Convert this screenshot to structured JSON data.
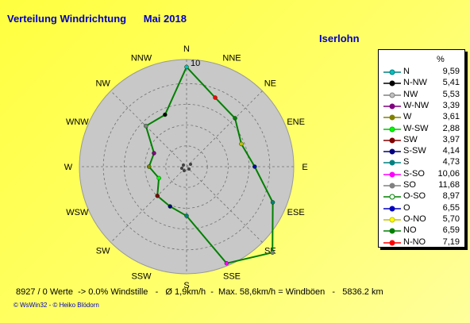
{
  "header": {
    "title": "Verteilung Windrichtung",
    "month": "Mai 2018",
    "location": "Iserlohn"
  },
  "chart_data": {
    "type": "radar",
    "unit": "%",
    "r_max": 10,
    "r_ticks": [
      10
    ],
    "grid": true,
    "compass": [
      "N",
      "NNE",
      "NE",
      "ENE",
      "E",
      "ESE",
      "SE",
      "SSE",
      "S",
      "SSW",
      "SW",
      "WSW",
      "W",
      "WNW",
      "NW",
      "NNW"
    ],
    "legend": [
      {
        "label": "N",
        "value": "9,59"
      },
      {
        "label": "N-NW",
        "value": "5,41"
      },
      {
        "label": "NW",
        "value": "5,53"
      },
      {
        "label": "W-NW",
        "value": "3,39"
      },
      {
        "label": "W",
        "value": "3,61"
      },
      {
        "label": "W-SW",
        "value": "2,88"
      },
      {
        "label": "SW",
        "value": "3,97"
      },
      {
        "label": "S-SW",
        "value": "4,14"
      },
      {
        "label": "S",
        "value": "4,73"
      },
      {
        "label": "S-SO",
        "value": "10,06"
      },
      {
        "label": "SO",
        "value": "11,68"
      },
      {
        "label": "O-SO",
        "value": "8,97"
      },
      {
        "label": "O",
        "value": "6,55"
      },
      {
        "label": "O-NO",
        "value": "5,70"
      },
      {
        "label": "NO",
        "value": "6,59"
      },
      {
        "label": "N-NO",
        "value": "7,19"
      }
    ],
    "series": [
      {
        "directions": [
          "N",
          "NNE",
          "NE",
          "ENE",
          "E",
          "ESE",
          "SE",
          "SSE",
          "S",
          "SSW",
          "SW",
          "WSW",
          "W",
          "WNW",
          "NW",
          "NNW"
        ],
        "values": [
          9.59,
          7.19,
          6.59,
          5.7,
          6.55,
          8.97,
          11.68,
          10.06,
          4.73,
          4.14,
          3.97,
          2.88,
          3.61,
          3.39,
          5.53,
          5.41
        ],
        "marker_colors": [
          "#00c0c0",
          "#ff0000",
          "#008000",
          "#c0c000",
          "#0000c0",
          "#008080",
          "#808080",
          "#ff00ff",
          "#008080",
          "#000080",
          "#800000",
          "#00ff00",
          "#808000",
          "#800080",
          "#808080",
          "#000000"
        ]
      }
    ]
  },
  "legend_markers": [
    {
      "line": "#008080",
      "fill": "#00c0c0"
    },
    {
      "line": "#000000",
      "fill": "#000000"
    },
    {
      "line": "#808080",
      "fill": "#c0c0c0"
    },
    {
      "line": "#800080",
      "fill": "#800080"
    },
    {
      "line": "#808000",
      "fill": "#808000"
    },
    {
      "line": "#00c000",
      "fill": "#00ff00"
    },
    {
      "line": "#800000",
      "fill": "#800000"
    },
    {
      "line": "#000080",
      "fill": "#000080"
    },
    {
      "line": "#008080",
      "fill": "#008080"
    },
    {
      "line": "#ff00ff",
      "fill": "#ff00ff"
    },
    {
      "line": "#808080",
      "fill": "#808080"
    },
    {
      "line": "#008000",
      "fill": "#ffffff"
    },
    {
      "line": "#0000c0",
      "fill": "#0000c0"
    },
    {
      "line": "#c0c000",
      "fill": "#ffff00"
    },
    {
      "line": "#008000",
      "fill": "#008000"
    },
    {
      "line": "#ff0000",
      "fill": "#ff0000"
    }
  ],
  "footer": {
    "stats": "8927 / 0 Werte  -> 0.0% Windstille   -   Ø 1,9km/h  -  Max. 58,6km/h = Windböen   -   5836.2 km",
    "copyright": "© WsWin32  -  © Heiko Blödorn"
  },
  "colors": {
    "background": "#ffff60",
    "title": "#0000c0",
    "rose_fill": "#c8c8c8",
    "line": "#008000"
  }
}
